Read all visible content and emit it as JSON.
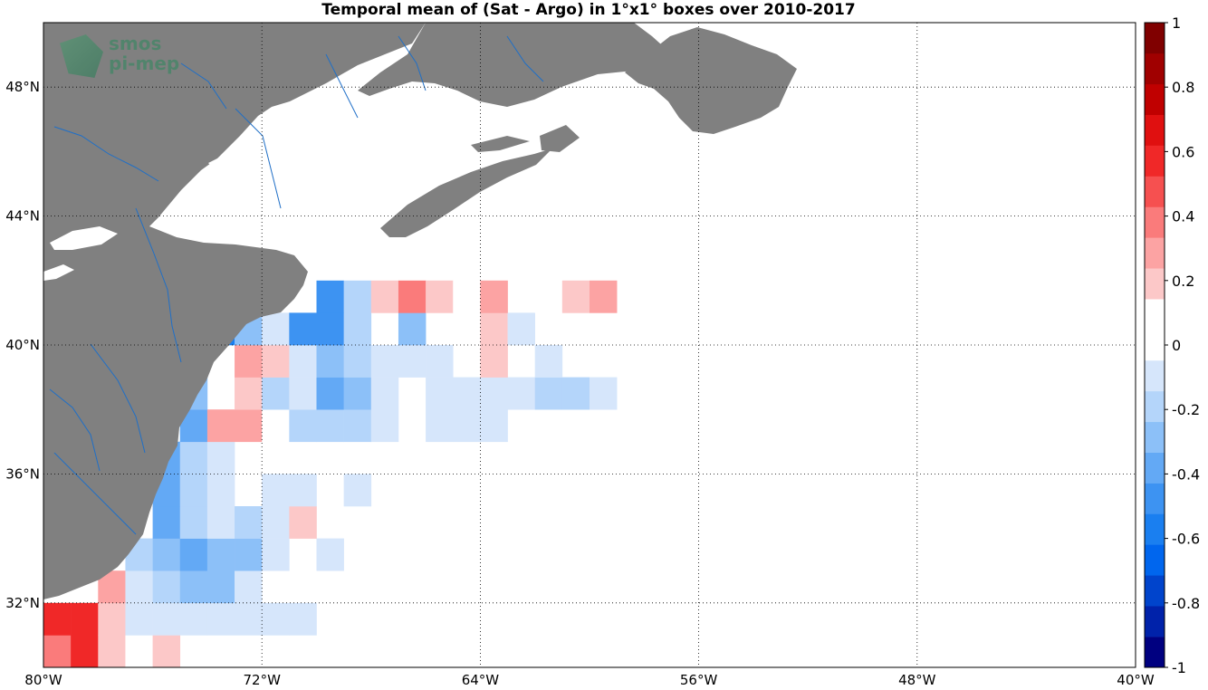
{
  "title": "Temporal mean of (Sat - Argo) in 1°x1° boxes over 2010-2017",
  "logo": {
    "line1": "smos",
    "line2": "pi-mep"
  },
  "colors": {
    "land": "#808080",
    "ocean": "#ffffff",
    "rivers": "#1f6fc7",
    "grid": "#000000"
  },
  "map_extent": {
    "lon_min": -80,
    "lon_max": -40,
    "lat_min": 30,
    "lat_max": 50
  },
  "axes": {
    "x_ticks": [
      {
        "lon": -80,
        "label": "80°W"
      },
      {
        "lon": -72,
        "label": "72°W"
      },
      {
        "lon": -64,
        "label": "64°W"
      },
      {
        "lon": -56,
        "label": "56°W"
      },
      {
        "lon": -48,
        "label": "48°W"
      },
      {
        "lon": -40,
        "label": "40°W"
      }
    ],
    "y_ticks": [
      {
        "lat": 48,
        "label": "48°N"
      },
      {
        "lat": 44,
        "label": "44°N"
      },
      {
        "lat": 40,
        "label": "40°N"
      },
      {
        "lat": 36,
        "label": "36°N"
      },
      {
        "lat": 32,
        "label": "32°N"
      }
    ]
  },
  "colorbar": {
    "min": -1,
    "max": 1,
    "ticks": [
      "1",
      "0.8",
      "0.6",
      "0.4",
      "0.2",
      "0",
      "-0.2",
      "-0.4",
      "-0.6",
      "-0.8",
      "-1"
    ],
    "levels": [
      "#000080",
      "#0022aa",
      "#0044cc",
      "#0066ee",
      "#1a7ff0",
      "#3d93f2",
      "#63a9f5",
      "#8cc0f8",
      "#b4d5fa",
      "#d6e6fb",
      "#ffffff",
      "#ffffff",
      "#fcc8c8",
      "#fca3a3",
      "#fa7b7b",
      "#f65050",
      "#f02828",
      "#e01010",
      "#c00000",
      "#a00000",
      "#800000"
    ]
  },
  "chart_data": {
    "type": "heatmap",
    "cell_size_deg": 1,
    "value_range": [
      -1,
      1
    ],
    "cells": [
      [
        -80,
        30,
        0.35
      ],
      [
        -79,
        30,
        0.6
      ],
      [
        -80,
        31,
        0.6
      ],
      [
        -79,
        31,
        0.6
      ],
      [
        -78,
        30,
        0.2
      ],
      [
        -78,
        31,
        0.2
      ],
      [
        -78,
        32,
        0.3
      ],
      [
        -77,
        30,
        0
      ],
      [
        -76,
        30,
        0.2
      ],
      [
        -77,
        31,
        -0.1
      ],
      [
        -76,
        31,
        -0.1
      ],
      [
        -75,
        31,
        -0.1
      ],
      [
        -74,
        31,
        -0.1
      ],
      [
        -73,
        31,
        -0.1
      ],
      [
        -72,
        31,
        -0.1
      ],
      [
        -71,
        31,
        -0.1
      ],
      [
        -77,
        32,
        -0.1
      ],
      [
        -76,
        32,
        -0.2
      ],
      [
        -75,
        32,
        -0.3
      ],
      [
        -74,
        32,
        -0.3
      ],
      [
        -73,
        32,
        -0.1
      ],
      [
        -77,
        33,
        -0.2
      ],
      [
        -76,
        33,
        -0.3
      ],
      [
        -75,
        33,
        -0.4
      ],
      [
        -74,
        33,
        -0.3
      ],
      [
        -73,
        33,
        -0.3
      ],
      [
        -72,
        33,
        -0.1
      ],
      [
        -70,
        33,
        -0.1
      ],
      [
        -76,
        34,
        -0.4
      ],
      [
        -75,
        34,
        -0.2
      ],
      [
        -74,
        34,
        -0.1
      ],
      [
        -73,
        34,
        -0.2
      ],
      [
        -72,
        34,
        -0.1
      ],
      [
        -71,
        34,
        0.2
      ],
      [
        -76,
        35,
        -0.4
      ],
      [
        -75,
        35,
        -0.2
      ],
      [
        -74,
        35,
        -0.1
      ],
      [
        -72,
        35,
        -0.1
      ],
      [
        -71,
        35,
        -0.1
      ],
      [
        -69,
        35,
        -0.1
      ],
      [
        -76,
        36,
        -0.4
      ],
      [
        -75,
        36,
        -0.2
      ],
      [
        -74,
        36,
        -0.1
      ],
      [
        -75,
        37,
        -0.4
      ],
      [
        -74,
        37,
        0.3
      ],
      [
        -73,
        37,
        0.3
      ],
      [
        -72,
        37,
        0
      ],
      [
        -71,
        37,
        -0.2
      ],
      [
        -70,
        37,
        -0.2
      ],
      [
        -69,
        37,
        -0.2
      ],
      [
        -68,
        37,
        -0.1
      ],
      [
        -66,
        37,
        -0.1
      ],
      [
        -65,
        37,
        -0.1
      ],
      [
        -64,
        37,
        -0.1
      ],
      [
        -76,
        38,
        0.2
      ],
      [
        -75,
        38,
        -0.3
      ],
      [
        -73,
        38,
        0.2
      ],
      [
        -72,
        38,
        -0.2
      ],
      [
        -71,
        38,
        -0.1
      ],
      [
        -70,
        38,
        -0.4
      ],
      [
        -69,
        38,
        -0.3
      ],
      [
        -68,
        38,
        -0.1
      ],
      [
        -66,
        38,
        -0.1
      ],
      [
        -65,
        38,
        -0.1
      ],
      [
        -64,
        38,
        -0.1
      ],
      [
        -63,
        38,
        -0.1
      ],
      [
        -62,
        38,
        -0.2
      ],
      [
        -61,
        38,
        -0.2
      ],
      [
        -60,
        38,
        -0.1
      ],
      [
        -75,
        39,
        -0.6
      ],
      [
        -73,
        39,
        0.3
      ],
      [
        -72,
        39,
        0.2
      ],
      [
        -71,
        39,
        -0.1
      ],
      [
        -70,
        39,
        -0.3
      ],
      [
        -69,
        39,
        -0.2
      ],
      [
        -68,
        39,
        -0.1
      ],
      [
        -67,
        39,
        -0.1
      ],
      [
        -66,
        39,
        -0.1
      ],
      [
        -64,
        39,
        0.2
      ],
      [
        -62,
        39,
        -0.1
      ],
      [
        -74,
        40,
        -0.6
      ],
      [
        -73,
        40,
        -0.3
      ],
      [
        -72,
        40,
        -0.1
      ],
      [
        -71,
        40,
        -0.5
      ],
      [
        -70,
        40,
        -0.5
      ],
      [
        -69,
        40,
        -0.2
      ],
      [
        -67,
        40,
        -0.3
      ],
      [
        -64,
        40,
        0.2
      ],
      [
        -63,
        40,
        -0.1
      ],
      [
        -70,
        41,
        -0.5
      ],
      [
        -69,
        41,
        -0.2
      ],
      [
        -68,
        41,
        0.2
      ],
      [
        -67,
        41,
        0.4
      ],
      [
        -66,
        41,
        0.2
      ],
      [
        -65,
        41,
        0
      ],
      [
        -64,
        41,
        0.3
      ],
      [
        -62,
        41,
        0
      ],
      [
        -61,
        41,
        0.2
      ],
      [
        -60,
        41,
        0.3
      ]
    ]
  }
}
